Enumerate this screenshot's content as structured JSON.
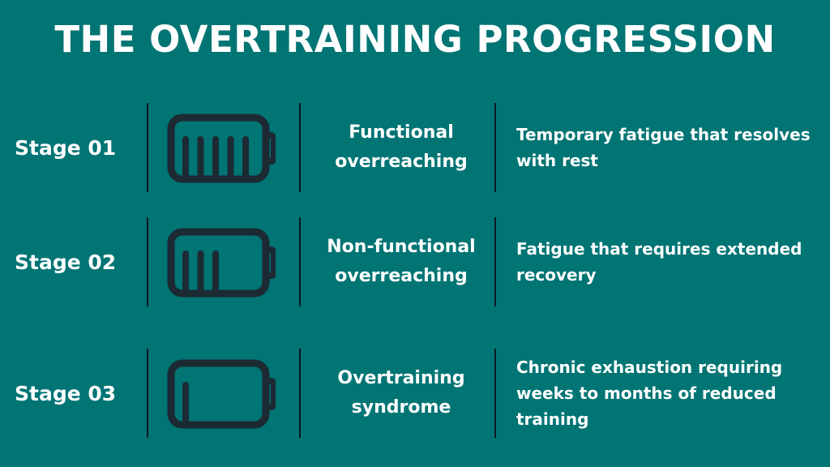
{
  "title": "THE OVERTRAINING PROGRESSION",
  "colors": {
    "background": "#017474",
    "icon": "#1c2a33",
    "divider": "#0d1a1f",
    "text": "#ffffff"
  },
  "stages": [
    {
      "label": "Stage 01",
      "name": "Functional overreaching",
      "description": "Temporary fatigue that resolves with rest",
      "icon": "battery-full-icon",
      "battery_bars": 5
    },
    {
      "label": "Stage 02",
      "name": "Non-functional overreaching",
      "description": "Fatigue that requires extended recovery",
      "icon": "battery-half-icon",
      "battery_bars": 3
    },
    {
      "label": "Stage 03",
      "name": "Overtraining syndrome",
      "description": "Chronic exhaustion requiring weeks to months of reduced training",
      "icon": "battery-low-icon",
      "battery_bars": 1
    }
  ]
}
